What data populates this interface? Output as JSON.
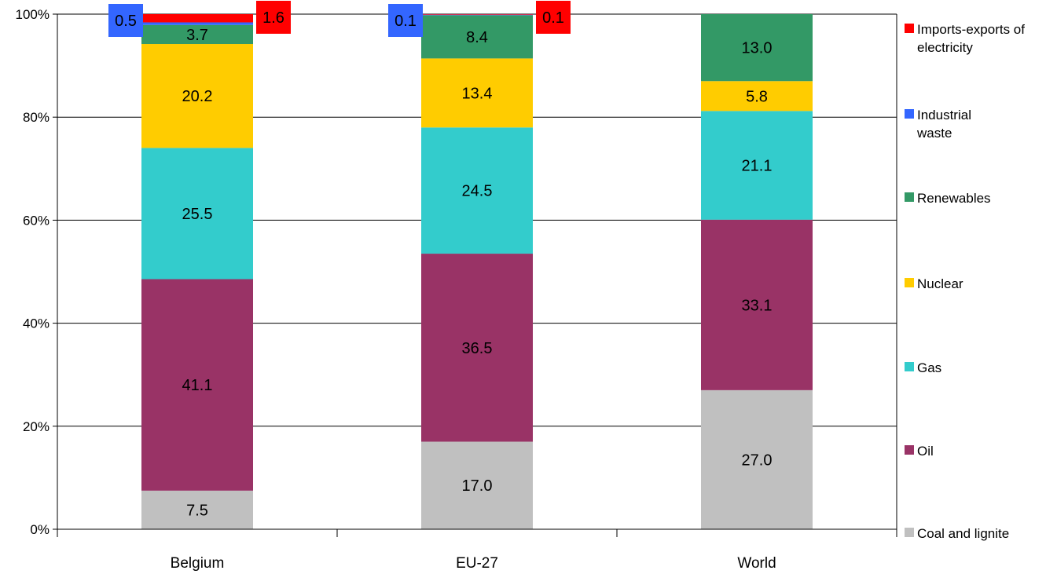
{
  "chart_data": {
    "type": "bar",
    "stacked": true,
    "normalized": true,
    "categories": [
      "Belgium",
      "EU-27",
      "World"
    ],
    "series": [
      {
        "name": "Coal and lignite",
        "color": "#C0C0C0",
        "values": [
          7.5,
          17.0,
          27.0
        ]
      },
      {
        "name": "Oil",
        "color": "#993366",
        "values": [
          41.1,
          36.5,
          33.1
        ]
      },
      {
        "name": "Gas",
        "color": "#33CCCC",
        "values": [
          25.5,
          24.5,
          21.1
        ]
      },
      {
        "name": "Nuclear",
        "color": "#FFCC00",
        "values": [
          20.2,
          13.4,
          5.8
        ]
      },
      {
        "name": "Renewables",
        "color": "#339966",
        "values": [
          3.7,
          8.4,
          13.0
        ]
      },
      {
        "name": "Industrial waste",
        "color": "#3366FF",
        "values": [
          0.5,
          0.1,
          0
        ]
      },
      {
        "name": "Imports-exports of electricity",
        "color": "#FF0000",
        "values": [
          1.6,
          0.1,
          0
        ]
      }
    ],
    "ylim": [
      0,
      100
    ],
    "yticks": [
      "0%",
      "20%",
      "40%",
      "60%",
      "80%",
      "100%"
    ],
    "grid": true,
    "legend_position": "right"
  },
  "legend": {
    "items": [
      {
        "label": "Imports-exports of electricity",
        "color": "#FF0000"
      },
      {
        "label": "Industrial waste",
        "color": "#3366FF"
      },
      {
        "label": "Renewables",
        "color": "#339966"
      },
      {
        "label": "Nuclear",
        "color": "#FFCC00"
      },
      {
        "label": "Gas",
        "color": "#33CCCC"
      },
      {
        "label": "Oil",
        "color": "#993366"
      },
      {
        "label": "Coal and lignite",
        "color": "#C0C0C0"
      }
    ]
  }
}
